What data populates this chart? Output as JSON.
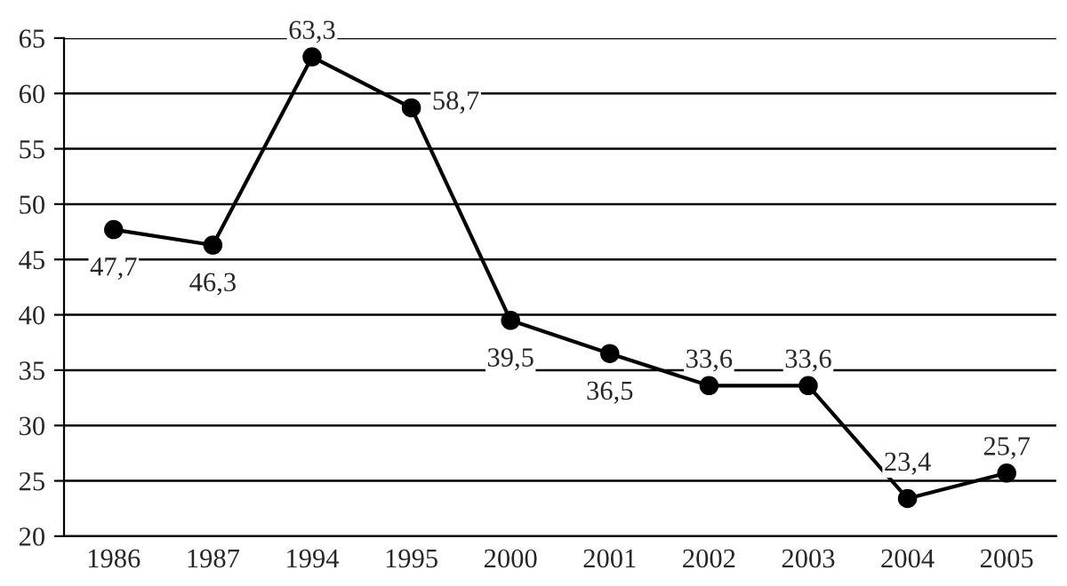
{
  "chart_data": {
    "type": "line",
    "categories": [
      "1986",
      "1987",
      "1994",
      "1995",
      "2000",
      "2001",
      "2002",
      "2003",
      "2004",
      "2005"
    ],
    "series": [
      {
        "color": "#000000",
        "values": [
          47.7,
          46.3,
          63.3,
          58.7,
          39.5,
          36.5,
          33.6,
          33.6,
          23.4,
          25.7
        ],
        "value_labels": [
          "47,7",
          "46,3",
          "63,3",
          "58,7",
          "39,5",
          "36,5",
          "33,6",
          "33,6",
          "23,4",
          "25,7"
        ]
      }
    ],
    "ylim": [
      20,
      65
    ],
    "yticks": [
      20,
      25,
      30,
      35,
      40,
      45,
      50,
      55,
      60,
      65
    ],
    "grid": "y",
    "marker": "circle",
    "line_style": "solid",
    "legend": false
  }
}
